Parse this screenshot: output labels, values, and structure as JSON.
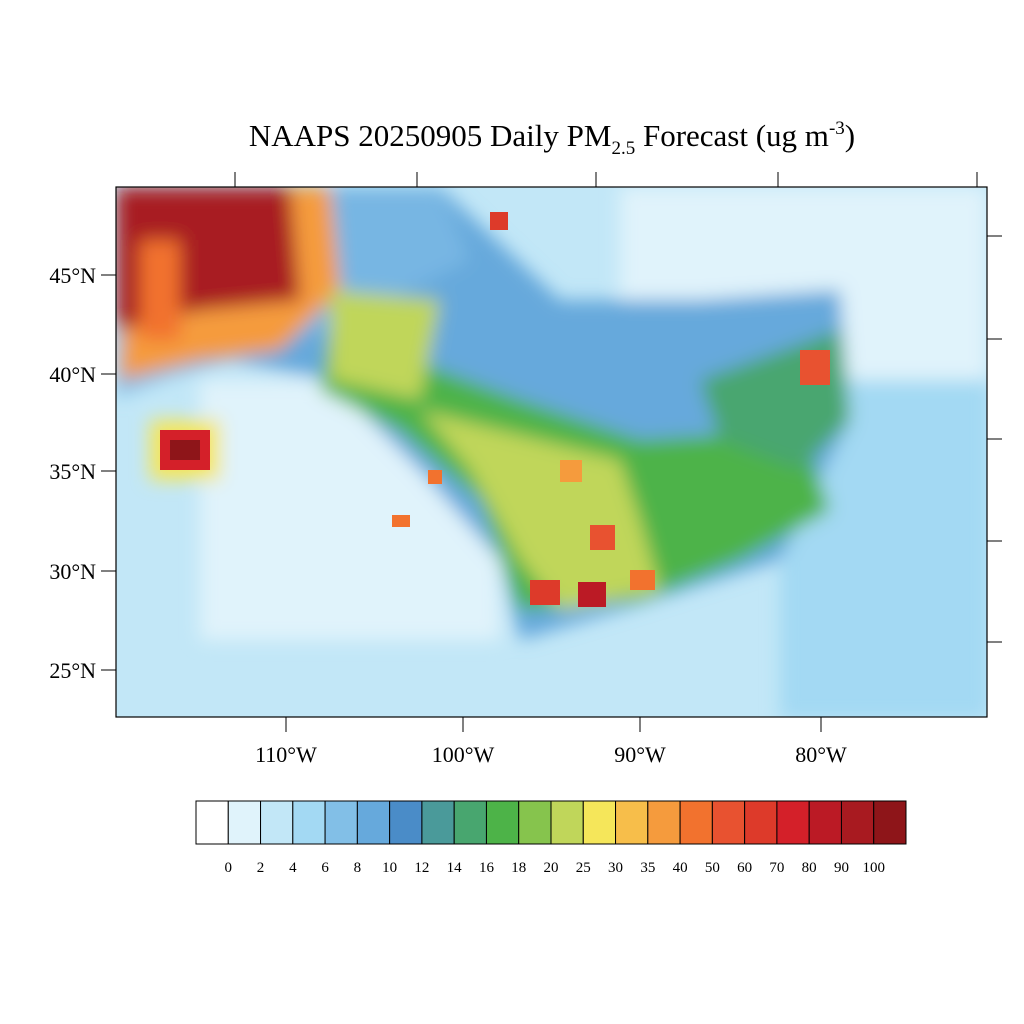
{
  "title": {
    "main": "NAAPS 20250905 Daily PM",
    "subscript": "2.5",
    "after": " Forecast (ug m",
    "superscript": "-3",
    "end": ")"
  },
  "map": {
    "lat_labels": [
      "45°N",
      "40°N",
      "35°N",
      "30°N",
      "25°N"
    ],
    "lon_labels": [
      "110°W",
      "100°W",
      "90°W",
      "80°W"
    ]
  },
  "colorbar": {
    "labels": [
      "0",
      "2",
      "4",
      "6",
      "8",
      "10",
      "12",
      "14",
      "16",
      "18",
      "20",
      "25",
      "30",
      "35",
      "40",
      "50",
      "60",
      "70",
      "80",
      "90",
      "100"
    ],
    "colors": [
      "#ffffff",
      "#e0f3fb",
      "#c2e7f7",
      "#a3d9f3",
      "#82bfe7",
      "#66a9dc",
      "#4a8cc8",
      "#4a9a9a",
      "#48a66f",
      "#4db348",
      "#86c44d",
      "#c0d65a",
      "#f5e65a",
      "#f7be4a",
      "#f59b3d",
      "#f2722e",
      "#e85230",
      "#dd3a2a",
      "#d42029",
      "#bb1a25",
      "#a81a20",
      "#8e1519"
    ]
  }
}
